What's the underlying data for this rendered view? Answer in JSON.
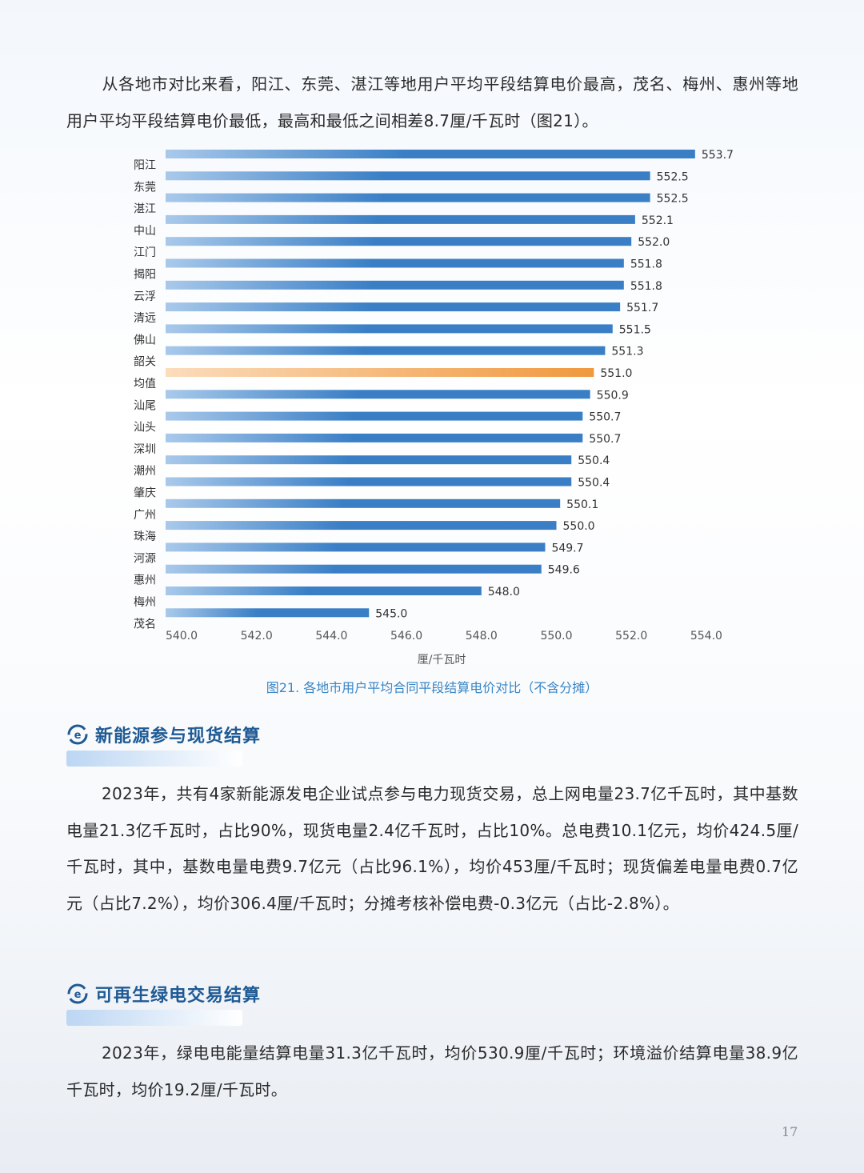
{
  "intro_paragraph": "从各地市对比来看，阳江、东莞、湛江等地用户平均平段结算电价最高，茂名、梅州、惠州等地用户平均平段结算电价最低，最高和最低之间相差8.7厘/千瓦时（图21）。",
  "chart_data": {
    "type": "bar",
    "orientation": "horizontal",
    "categories": [
      "阳江",
      "东莞",
      "湛江",
      "中山",
      "江门",
      "揭阳",
      "云浮",
      "清远",
      "佛山",
      "韶关",
      "均值",
      "汕尾",
      "汕头",
      "深圳",
      "潮州",
      "肇庆",
      "广州",
      "珠海",
      "河源",
      "惠州",
      "梅州",
      "茂名"
    ],
    "values": [
      553.7,
      552.5,
      552.5,
      552.1,
      552.0,
      551.8,
      551.8,
      551.7,
      551.5,
      551.3,
      551.0,
      550.9,
      550.7,
      550.7,
      550.4,
      550.4,
      550.1,
      550.0,
      549.7,
      549.6,
      548.0,
      545.0
    ],
    "value_labels": [
      "553.7",
      "552.5",
      "552.5",
      "552.1",
      "552.0",
      "551.8",
      "551.8",
      "551.7",
      "551.5",
      "551.3",
      "551.0",
      "550.9",
      "550.7",
      "550.7",
      "550.4",
      "550.4",
      "550.1",
      "550.0",
      "549.7",
      "549.6",
      "548.0",
      "545.0"
    ],
    "xlabel": "厘/千瓦时",
    "xlim": [
      540,
      554
    ],
    "xticks": [
      "540.0",
      "542.0",
      "544.0",
      "546.0",
      "548.0",
      "550.0",
      "552.0",
      "554.0"
    ],
    "grid": false,
    "colors": {
      "bar": "#3a7fc6",
      "bar_light": "#a9c9ea",
      "highlight": "#f0983e",
      "highlight_light": "#fbdcbc"
    },
    "highlight_category": "均值",
    "caption": "图21. 各地市用户平均合同平段结算电价对比（不含分摊）"
  },
  "section1": {
    "title": "新能源参与现货结算",
    "icon": "settlement-cycle-icon",
    "paragraph": "2023年，共有4家新能源发电企业试点参与电力现货交易，总上网电量23.7亿千瓦时，其中基数电量21.3亿千瓦时，占比90%，现货电量2.4亿千瓦时，占比10%。总电费10.1亿元，均价424.5厘/千瓦时，其中，基数电量电费9.7亿元（占比96.1%），均价453厘/千瓦时；现货偏差电量电费0.7亿元（占比7.2%），均价306.4厘/千瓦时；分摊考核补偿电费-0.3亿元（占比-2.8%）。"
  },
  "section2": {
    "title": "可再生绿电交易结算",
    "icon": "settlement-cycle-icon",
    "paragraph": "2023年，绿电电能量结算电量31.3亿千瓦时，均价530.9厘/千瓦时；环境溢价结算电量38.9亿千瓦时，均价19.2厘/千瓦时。"
  },
  "page_number": "17"
}
